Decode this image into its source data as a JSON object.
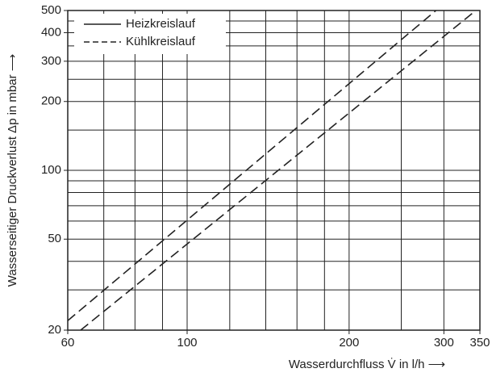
{
  "chart_data": {
    "type": "line",
    "xlabel": "Wasserdurchfluss V̇ in l/h  ⟶",
    "ylabel": "Wasserseitiger Druckverlust Δp in mbar  ⟶",
    "log_x": true,
    "log_y": true,
    "xlim": [
      60,
      350
    ],
    "ylim": [
      20,
      500
    ],
    "xticks": [
      60,
      100,
      200,
      300,
      350
    ],
    "yticks": [
      20,
      50,
      100,
      200,
      300,
      400,
      500
    ],
    "xgrid": [
      70,
      80,
      90,
      100,
      120,
      140,
      160,
      180,
      200,
      250,
      300
    ],
    "ygrid": [
      30,
      40,
      50,
      60,
      70,
      80,
      90,
      100,
      150,
      200,
      250,
      300,
      350,
      400,
      450
    ],
    "legend_position": "upper left",
    "series": [
      {
        "name": "Heizkreislauf",
        "color": "#222222",
        "legend_style": "solid",
        "line_style": "dashed",
        "x": [
          60,
          290
        ],
        "values": [
          22,
          500
        ]
      },
      {
        "name": "Kühlkreislauf",
        "color": "#222222",
        "legend_style": "dashed",
        "line_style": "dashed",
        "x": [
          63.4,
          344
        ],
        "values": [
          20,
          500
        ]
      }
    ]
  }
}
